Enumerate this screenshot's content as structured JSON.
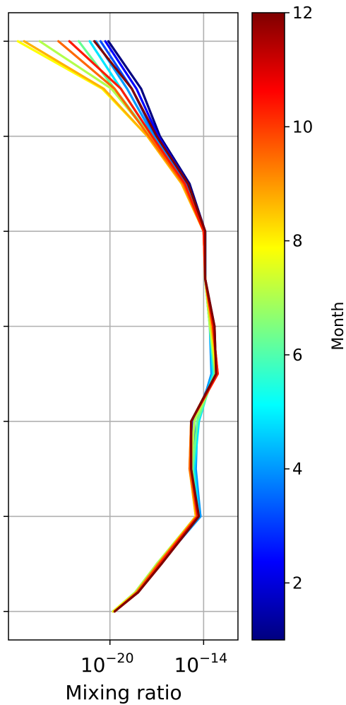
{
  "chart_data": {
    "type": "line",
    "title": "",
    "xlabel": "Mixing ratio",
    "ylabel": "",
    "xscale": "log",
    "xlim_log10": [
      -26.5,
      -11.8
    ],
    "ylim": [
      -0.3,
      6.3
    ],
    "x_ticks": [
      {
        "value_log10": -20,
        "base": "10",
        "exponent": "−20"
      },
      {
        "value_log10": -14,
        "base": "10",
        "exponent": "−14"
      }
    ],
    "y_ticks": [
      0,
      1,
      2,
      3,
      4,
      5,
      6
    ],
    "grid": true,
    "legend": "none",
    "colorbar": {
      "label": "Month",
      "range": [
        1,
        12
      ],
      "ticks": [
        "2",
        "4",
        "6",
        "8",
        "10",
        "12"
      ],
      "colormap": "jet",
      "stops": [
        "#00007f",
        "#0000ff",
        "#007fff",
        "#00ffff",
        "#7fff7f",
        "#ffff00",
        "#ff7f00",
        "#ff0000",
        "#7f0000"
      ]
    },
    "level_index": [
      0,
      0.2,
      0.5,
      1,
      1.5,
      2,
      2.5,
      3,
      3.5,
      4,
      4.5,
      5,
      5.5,
      6
    ],
    "series": [
      {
        "month": 1,
        "color": "#00007f",
        "log10_values": [
          -19.8,
          -18.3,
          -17.0,
          -14.4,
          -14.8,
          -14.8,
          -13.2,
          -13.3,
          -13.9,
          -13.9,
          -14.9,
          -16.8,
          -18.0,
          -20.1
        ]
      },
      {
        "month": 2,
        "color": "#0000ff",
        "log10_values": [
          -19.8,
          -18.2,
          -16.9,
          -14.3,
          -14.7,
          -14.7,
          -13.3,
          -13.4,
          -13.9,
          -13.9,
          -15.0,
          -16.9,
          -18.3,
          -20.3
        ]
      },
      {
        "month": 3,
        "color": "#004cff",
        "log10_values": [
          -19.8,
          -18.2,
          -16.8,
          -14.2,
          -14.6,
          -14.6,
          -13.4,
          -13.5,
          -13.9,
          -13.9,
          -15.1,
          -17.1,
          -18.6,
          -20.6
        ]
      },
      {
        "month": 4,
        "color": "#0099ff",
        "log10_values": [
          -19.8,
          -18.2,
          -16.8,
          -14.2,
          -14.5,
          -14.4,
          -13.5,
          -13.6,
          -13.9,
          -13.9,
          -15.2,
          -17.2,
          -18.9,
          -20.9
        ]
      },
      {
        "month": 5,
        "color": "#00e5ff",
        "log10_values": [
          -19.8,
          -18.2,
          -16.8,
          -14.3,
          -14.6,
          -14.3,
          -13.4,
          -13.6,
          -13.9,
          -13.9,
          -15.2,
          -17.3,
          -19.3,
          -21.3
        ]
      },
      {
        "month": 6,
        "color": "#66ff90",
        "log10_values": [
          -19.8,
          -18.3,
          -16.9,
          -14.4,
          -14.7,
          -14.4,
          -13.3,
          -13.6,
          -13.9,
          -14.0,
          -15.3,
          -17.4,
          -19.7,
          -22.0
        ]
      },
      {
        "month": 7,
        "color": "#b2ff4c",
        "log10_values": [
          -19.8,
          -18.4,
          -17.0,
          -14.5,
          -14.8,
          -14.6,
          -13.2,
          -13.6,
          -13.9,
          -14.0,
          -15.3,
          -17.4,
          -19.9,
          -24.5
        ]
      },
      {
        "month": 8,
        "color": "#ffff00",
        "log10_values": [
          -19.8,
          -18.3,
          -16.9,
          -14.5,
          -14.9,
          -14.8,
          -13.2,
          -13.5,
          -13.9,
          -14.0,
          -15.4,
          -17.6,
          -20.5,
          -25.9
        ]
      },
      {
        "month": 9,
        "color": "#ffb200",
        "log10_values": [
          -19.7,
          -18.3,
          -16.9,
          -14.5,
          -14.9,
          -14.8,
          -13.1,
          -13.5,
          -13.9,
          -14.0,
          -15.4,
          -17.6,
          -20.4,
          -25.5
        ]
      },
      {
        "month": 10,
        "color": "#ff6600",
        "log10_values": [
          -19.7,
          -18.3,
          -16.9,
          -14.4,
          -14.9,
          -14.8,
          -13.1,
          -13.4,
          -13.9,
          -14.0,
          -15.3,
          -17.5,
          -19.7,
          -23.3
        ]
      },
      {
        "month": 11,
        "color": "#ff1a00",
        "log10_values": [
          -19.7,
          -18.2,
          -16.8,
          -14.4,
          -14.8,
          -14.8,
          -13.1,
          -13.4,
          -13.9,
          -14.0,
          -15.2,
          -17.3,
          -19.3,
          -22.6
        ]
      },
      {
        "month": 12,
        "color": "#7f0000",
        "log10_values": [
          -19.7,
          -18.2,
          -16.7,
          -14.3,
          -14.8,
          -14.8,
          -13.2,
          -13.3,
          -13.9,
          -13.9,
          -15.0,
          -17.0,
          -18.6,
          -21.0
        ]
      }
    ]
  }
}
